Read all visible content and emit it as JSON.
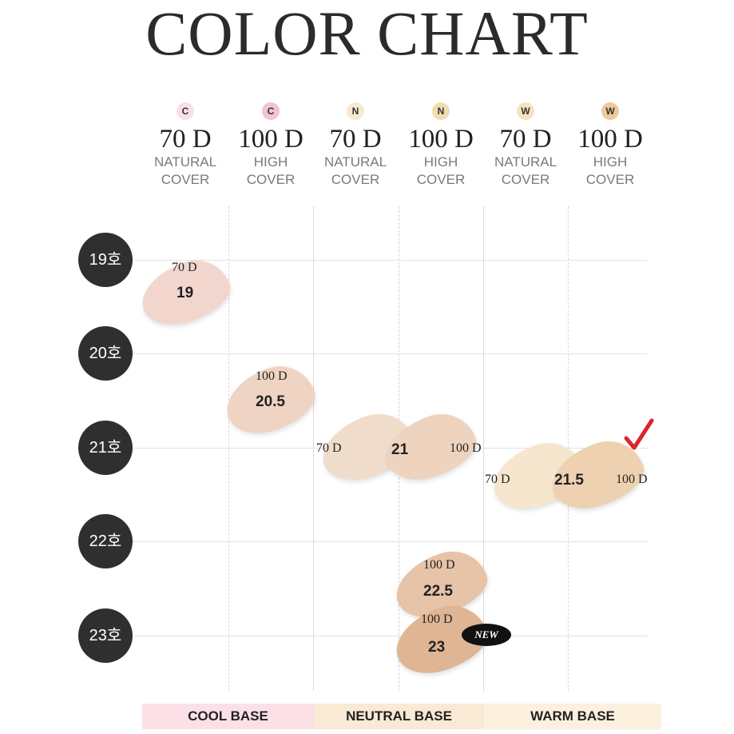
{
  "title": "COLOR CHART",
  "columns": [
    {
      "tone": "C",
      "code": "70 D",
      "line1": "NATURAL",
      "line2": "COVER",
      "tone_color": "#f9dfe6"
    },
    {
      "tone": "C",
      "code": "100 D",
      "line1": "HIGH",
      "line2": "COVER",
      "tone_color": "#f3c3cf"
    },
    {
      "tone": "N",
      "code": "70 D",
      "line1": "NATURAL",
      "line2": "COVER",
      "tone_color": "#f7ead0"
    },
    {
      "tone": "N",
      "code": "100 D",
      "line1": "HIGH",
      "line2": "COVER",
      "tone_color": "#f2ddb2"
    },
    {
      "tone": "W",
      "code": "70 D",
      "line1": "NATURAL",
      "line2": "COVER",
      "tone_color": "#f6e3bf"
    },
    {
      "tone": "W",
      "code": "100 D",
      "line1": "HIGH",
      "line2": "COVER",
      "tone_color": "#eec99a"
    }
  ],
  "rows": [
    "19호",
    "20호",
    "21호",
    "22호",
    "23호"
  ],
  "swatches": {
    "s19": {
      "top_label": "70 D",
      "num": "19",
      "color": "#f2d6cd"
    },
    "s205": {
      "top_label": "100 D",
      "num": "20.5",
      "color": "#efd3c3"
    },
    "s21a": {
      "side_label": "70 D",
      "color": "#f0dccb"
    },
    "s21b": {
      "num": "21",
      "side_label": "100 D",
      "color": "#eed4bf"
    },
    "s215a": {
      "side_label": "70 D",
      "color": "#f5e6cd"
    },
    "s215b": {
      "num": "21.5",
      "side_label": "100 D",
      "color": "#edd1b0"
    },
    "s225": {
      "top_label": "100 D",
      "num": "22.5",
      "color": "#e7c3a8"
    },
    "s23": {
      "top_label": "100 D",
      "num": "23",
      "color": "#dfb593"
    }
  },
  "new_badge": "NEW",
  "bases": [
    {
      "label": "COOL BASE",
      "color": "#fbe1e7"
    },
    {
      "label": "NEUTRAL BASE",
      "color": "#fae9d4"
    },
    {
      "label": "WARM BASE",
      "color": "#fcf1de"
    }
  ]
}
